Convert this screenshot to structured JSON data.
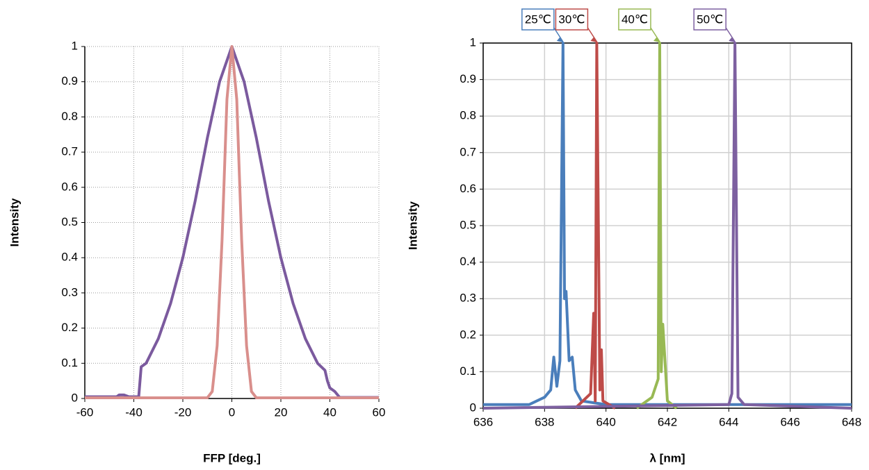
{
  "chart_data": [
    {
      "type": "line",
      "xlabel": "FFP  [deg.]",
      "ylabel": "Intensity",
      "xlim": [
        -60,
        60
      ],
      "xticks": [
        -60,
        -40,
        -20,
        0,
        20,
        40,
        60
      ],
      "ylim": [
        0,
        1
      ],
      "yticks": [
        0,
        0.1,
        0.2,
        0.3,
        0.4,
        0.5,
        0.6,
        0.7,
        0.8,
        0.9,
        1
      ],
      "grid": "dotted",
      "frame": false,
      "series": [
        {
          "color": "#7b5a9e",
          "x": [
            -60,
            -47,
            -46,
            -44,
            -42,
            -38,
            -37,
            -35,
            -30,
            -25,
            -20,
            -15,
            -10,
            -5,
            0,
            5,
            10,
            15,
            20,
            25,
            30,
            35,
            38,
            39,
            40,
            42,
            44,
            60
          ],
          "values": [
            0.005,
            0.005,
            0.01,
            0.01,
            0.005,
            0.005,
            0.09,
            0.1,
            0.17,
            0.27,
            0.4,
            0.56,
            0.74,
            0.9,
            1,
            0.9,
            0.74,
            0.56,
            0.4,
            0.27,
            0.17,
            0.1,
            0.08,
            0.05,
            0.03,
            0.02,
            0.003,
            0.003
          ]
        },
        {
          "color": "#d98f8c",
          "x": [
            -60,
            -10,
            -8,
            -6,
            -4,
            -2,
            0,
            2,
            4,
            6,
            8,
            10,
            60
          ],
          "values": [
            0.002,
            0.002,
            0.02,
            0.15,
            0.45,
            0.85,
            1,
            0.85,
            0.45,
            0.15,
            0.02,
            0.002,
            0.002
          ]
        }
      ]
    },
    {
      "type": "line",
      "xlabel": "λ  [nm]",
      "ylabel": "Intensity",
      "xlim": [
        636,
        648
      ],
      "xticks": [
        636,
        638,
        640,
        642,
        644,
        646,
        648
      ],
      "ylim": [
        0,
        1
      ],
      "yticks": [
        0,
        0.1,
        0.2,
        0.3,
        0.4,
        0.5,
        0.6,
        0.7,
        0.8,
        0.9,
        1
      ],
      "grid": "solid",
      "frame": true,
      "series": [
        {
          "color": "#4a7ebb",
          "x": [
            636,
            637.5,
            638,
            638.2,
            638.3,
            638.4,
            638.5,
            638.6,
            638.65,
            638.7,
            638.8,
            638.9,
            639,
            639.2,
            640,
            648
          ],
          "values": [
            0.01,
            0.01,
            0.03,
            0.05,
            0.14,
            0.06,
            0.13,
            1,
            0.3,
            0.32,
            0.13,
            0.14,
            0.05,
            0.02,
            0.01,
            0.01
          ]
        },
        {
          "color": "#be4b48",
          "x": [
            639,
            639.5,
            639.6,
            639.65,
            639.7,
            639.8,
            639.85,
            639.9,
            640.3
          ],
          "values": [
            0,
            0.04,
            0.26,
            0.02,
            1,
            0.05,
            0.16,
            0.02,
            0
          ]
        },
        {
          "color": "#98b954",
          "x": [
            641,
            641.5,
            641.7,
            641.75,
            641.8,
            641.85,
            642,
            642.3
          ],
          "values": [
            0,
            0.03,
            0.08,
            1,
            0.1,
            0.23,
            0.02,
            0
          ]
        },
        {
          "color": "#7d60a0",
          "x": [
            636,
            644,
            644.1,
            644.2,
            644.3,
            644.5,
            648
          ],
          "values": [
            0,
            0.01,
            0.04,
            1,
            0.03,
            0.01,
            0
          ]
        }
      ],
      "annotations": [
        {
          "text": "25℃",
          "x": 638.6,
          "color": "#4a7ebb"
        },
        {
          "text": "30℃",
          "x": 639.7,
          "color": "#be4b48"
        },
        {
          "text": "40℃",
          "x": 641.75,
          "color": "#98b954"
        },
        {
          "text": "50℃",
          "x": 644.2,
          "color": "#7d60a0"
        }
      ]
    }
  ]
}
